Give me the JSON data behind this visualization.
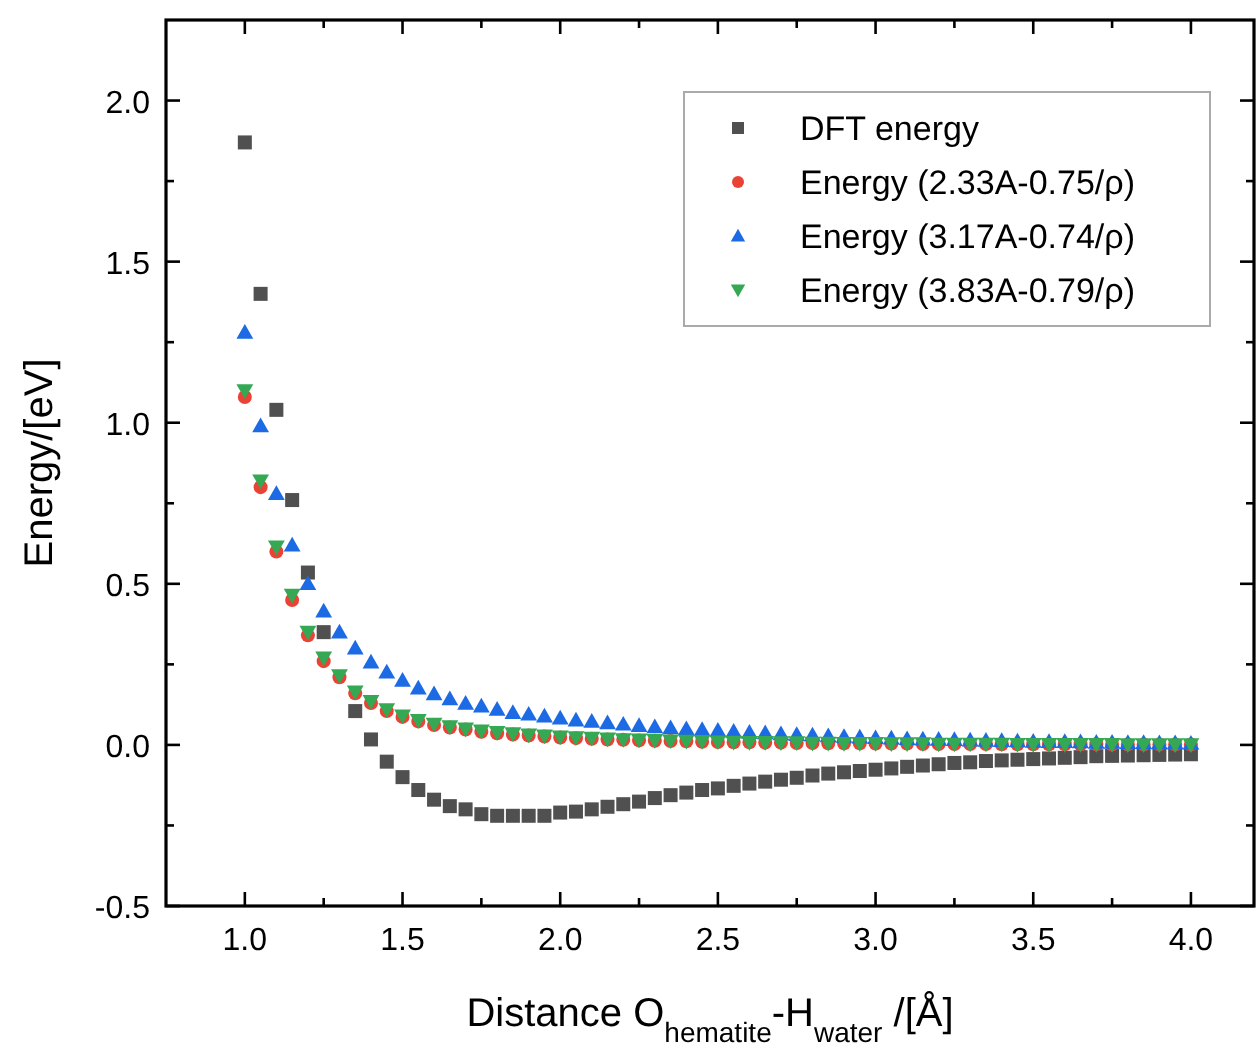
{
  "chart_data": {
    "type": "scatter",
    "xlabel": "Distance O$_{hematite}$-H$_{water}$ /[Å]",
    "ylabel": "Energy/[eV]",
    "x": [
      1.0,
      1.05,
      1.1,
      1.15,
      1.2,
      1.25,
      1.3,
      1.35,
      1.4,
      1.45,
      1.5,
      1.55,
      1.6,
      1.65,
      1.7,
      1.75,
      1.8,
      1.85,
      1.9,
      1.95,
      2.0,
      2.05,
      2.1,
      2.15,
      2.2,
      2.25,
      2.3,
      2.35,
      2.4,
      2.45,
      2.5,
      2.55,
      2.6,
      2.65,
      2.7,
      2.75,
      2.8,
      2.85,
      2.9,
      2.95,
      3.0,
      3.05,
      3.1,
      3.15,
      3.2,
      3.25,
      3.3,
      3.35,
      3.4,
      3.45,
      3.5,
      3.55,
      3.6,
      3.65,
      3.7,
      3.75,
      3.8,
      3.85,
      3.9,
      3.95,
      4.0
    ],
    "series": [
      {
        "name": "DFT energy",
        "color": "#505050",
        "marker": "square",
        "values": [
          1.87,
          1.4,
          1.04,
          0.76,
          0.535,
          0.35,
          null,
          0.105,
          0.017,
          -0.052,
          -0.1,
          -0.14,
          -0.17,
          -0.19,
          -0.2,
          -0.215,
          -0.22,
          -0.22,
          -0.22,
          -0.22,
          -0.21,
          -0.207,
          -0.2,
          -0.192,
          -0.184,
          -0.176,
          -0.165,
          -0.156,
          -0.148,
          -0.14,
          -0.135,
          -0.127,
          -0.12,
          -0.114,
          -0.108,
          -0.102,
          -0.095,
          -0.089,
          -0.085,
          -0.081,
          -0.077,
          -0.073,
          -0.068,
          -0.064,
          -0.06,
          -0.056,
          -0.054,
          -0.05,
          -0.048,
          -0.046,
          -0.044,
          -0.042,
          -0.04,
          -0.038,
          -0.035,
          -0.034,
          -0.033,
          -0.032,
          -0.031,
          -0.03,
          -0.029
        ]
      },
      {
        "name": "Energy (2.33A-0.75/ρ)",
        "color": "#eb4236",
        "marker": "circle",
        "values": [
          1.08,
          0.8,
          0.6,
          0.45,
          0.34,
          0.26,
          0.21,
          0.16,
          0.13,
          0.105,
          0.087,
          0.073,
          0.062,
          0.054,
          0.048,
          0.041,
          0.036,
          0.032,
          0.029,
          0.026,
          0.023,
          0.021,
          0.019,
          0.017,
          0.016,
          0.014,
          0.013,
          0.012,
          0.011,
          0.01,
          0.009,
          0.008,
          0.008,
          0.007,
          0.007,
          0.006,
          0.006,
          0.005,
          0.005,
          0.005,
          0.004,
          0.004,
          0.004,
          0.003,
          0.003,
          0.003,
          0.003,
          0.003,
          0.002,
          0.002,
          0.002,
          0.002,
          0.002,
          0.002,
          0.002,
          0.001,
          0.001,
          0.001,
          0.001,
          0.001,
          0.001
        ]
      },
      {
        "name": "Energy (3.17A-0.74/ρ)",
        "color": "#1d6ae5",
        "marker": "triangle",
        "values": [
          1.28,
          0.99,
          0.78,
          0.62,
          0.5,
          0.415,
          0.35,
          0.3,
          0.257,
          0.226,
          0.2,
          0.176,
          0.158,
          0.143,
          0.129,
          0.12,
          0.11,
          0.1,
          0.095,
          0.089,
          0.083,
          0.077,
          0.073,
          0.068,
          0.064,
          0.06,
          0.056,
          0.053,
          0.05,
          0.047,
          0.045,
          0.042,
          0.039,
          0.037,
          0.034,
          0.032,
          0.03,
          0.028,
          0.026,
          0.024,
          0.022,
          0.021,
          0.019,
          0.018,
          0.017,
          0.016,
          0.015,
          0.014,
          0.013,
          0.012,
          0.011,
          0.01,
          0.01,
          0.009,
          0.008,
          0.008,
          0.007,
          0.007,
          0.006,
          0.006,
          0.005
        ]
      },
      {
        "name": "Energy (3.83A-0.79/ρ)",
        "color": "#34a853",
        "marker": "triangle-down",
        "values": [
          1.1,
          0.82,
          0.615,
          0.465,
          0.35,
          0.27,
          0.215,
          0.165,
          0.135,
          0.11,
          0.09,
          0.076,
          0.065,
          0.057,
          0.05,
          0.044,
          0.039,
          0.035,
          0.031,
          0.028,
          0.025,
          0.023,
          0.021,
          0.019,
          0.017,
          0.016,
          0.014,
          0.013,
          0.012,
          0.011,
          0.01,
          0.009,
          0.008,
          0.008,
          0.007,
          0.007,
          0.006,
          0.006,
          0.005,
          0.005,
          0.005,
          0.004,
          0.004,
          0.004,
          0.003,
          0.003,
          0.003,
          0.003,
          0.003,
          0.002,
          0.002,
          0.002,
          0.002,
          0.002,
          0.002,
          0.002,
          0.001,
          0.001,
          0.001,
          0.001,
          0.001
        ]
      }
    ],
    "xlim": [
      0.75,
      4.2
    ],
    "ylim": [
      -0.5,
      2.25
    ],
    "xticks": [
      {
        "value": 1,
        "label": "1.0"
      },
      {
        "value": 1.25,
        "label": null
      },
      {
        "value": 1.5,
        "label": "1.5"
      },
      {
        "value": 1.75,
        "label": null
      },
      {
        "value": 2,
        "label": "2.0"
      },
      {
        "value": 2.25,
        "label": null
      },
      {
        "value": 2.5,
        "label": "2.5"
      },
      {
        "value": 2.75,
        "label": null
      },
      {
        "value": 3,
        "label": "3.0"
      },
      {
        "value": 3.25,
        "label": null
      },
      {
        "value": 3.5,
        "label": "3.5"
      },
      {
        "value": 3.75,
        "label": null
      },
      {
        "value": 4,
        "label": "4.0"
      }
    ],
    "yticks": [
      {
        "value": -0.5,
        "label": "-0.5"
      },
      {
        "value": -0.25,
        "label": null
      },
      {
        "value": 0,
        "label": "0.0"
      },
      {
        "value": 0.25,
        "label": null
      },
      {
        "value": 0.5,
        "label": "0.5"
      },
      {
        "value": 0.75,
        "label": null
      },
      {
        "value": 1,
        "label": "1.0"
      },
      {
        "value": 1.25,
        "label": null
      },
      {
        "value": 1.5,
        "label": "1.5"
      },
      {
        "value": 1.75,
        "label": null
      },
      {
        "value": 2,
        "label": "2.0"
      }
    ],
    "grid": false,
    "legend": "top right"
  }
}
